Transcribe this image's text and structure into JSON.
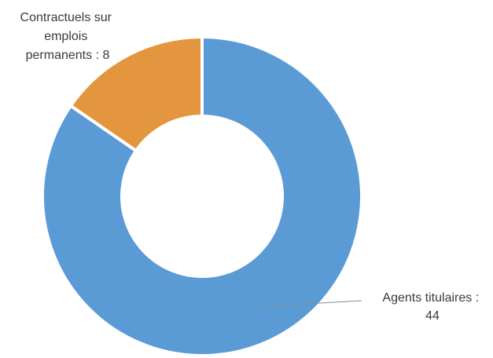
{
  "chart_data": {
    "type": "pie",
    "variant": "donut",
    "title": "",
    "slices": [
      {
        "label_lines": [
          "Agents titulaires :",
          "44"
        ],
        "value": 44,
        "color": "#5b9bd5"
      },
      {
        "label_lines": [
          "Contractuels sur",
          "emplois",
          "permanents : 8"
        ],
        "value": 8,
        "color": "#e3963e"
      }
    ],
    "start": "top",
    "direction": "clockwise",
    "legend": "none"
  }
}
